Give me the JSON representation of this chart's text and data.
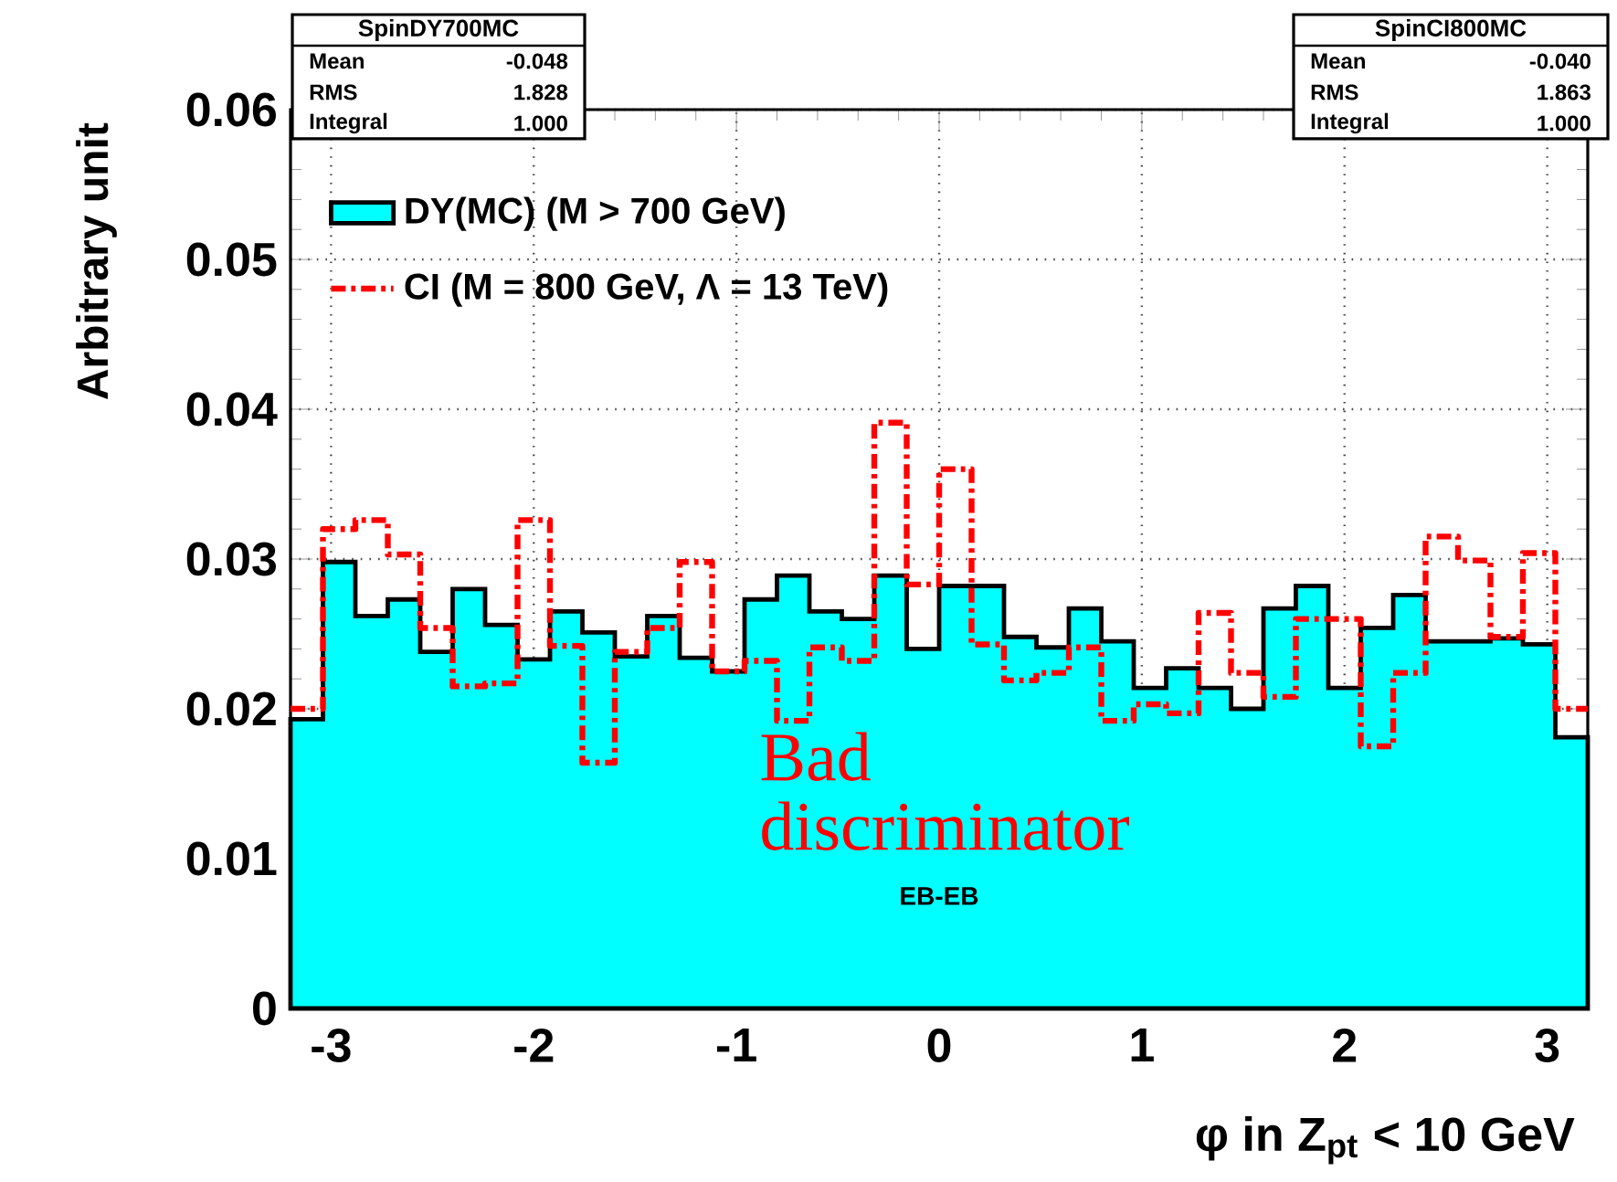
{
  "chart_data": {
    "type": "histogram",
    "xlabel": "φ in Z$_{pt}$ < 10 GeV",
    "ylabel": "Arbitrary unit",
    "bins": [
      -3.2,
      -3.04,
      -2.88,
      -2.72,
      -2.56,
      -2.4,
      -2.24,
      -2.08,
      -1.92,
      -1.76,
      -1.6,
      -1.44,
      -1.28,
      -1.12,
      -0.96,
      -0.8,
      -0.64,
      -0.48,
      -0.32,
      -0.16,
      0,
      0.16,
      0.32,
      0.48,
      0.64,
      0.8,
      0.96,
      1.12,
      1.28,
      1.44,
      1.6,
      1.76,
      1.92,
      2.08,
      2.24,
      2.4,
      2.56,
      2.72,
      2.88,
      3.04,
      3.2
    ],
    "series": [
      {
        "name": "DY(MC) (M > 700 GeV)",
        "color": "#00ffff",
        "values": [
          0.0193,
          0.0298,
          0.0262,
          0.0273,
          0.0238,
          0.028,
          0.0256,
          0.0233,
          0.0265,
          0.0251,
          0.0235,
          0.0262,
          0.0234,
          0.0225,
          0.0273,
          0.0289,
          0.0265,
          0.026,
          0.0289,
          0.024,
          0.0282,
          0.0282,
          0.0248,
          0.0241,
          0.0267,
          0.0245,
          0.0214,
          0.0227,
          0.0214,
          0.02,
          0.0267,
          0.0282,
          0.0214,
          0.0254,
          0.0276,
          0.0245,
          0.0245,
          0.0247,
          0.0243,
          0.0181
        ]
      },
      {
        "name": "CI (M = 800 GeV, Λ = 13 TeV)",
        "color": "#ff0000",
        "line_style": "dashed",
        "values": [
          0.02,
          0.032,
          0.0326,
          0.0303,
          0.0254,
          0.0215,
          0.0217,
          0.0326,
          0.0242,
          0.0164,
          0.0238,
          0.0254,
          0.0298,
          0.0225,
          0.0232,
          0.0192,
          0.0241,
          0.0232,
          0.0391,
          0.0283,
          0.036,
          0.0243,
          0.0219,
          0.0224,
          0.0241,
          0.0192,
          0.0203,
          0.0197,
          0.0264,
          0.0224,
          0.0208,
          0.026,
          0.026,
          0.0175,
          0.0224,
          0.0315,
          0.0299,
          0.0248,
          0.0304,
          0.02
        ]
      }
    ],
    "xlim": [
      -3.2,
      3.2
    ],
    "xticks": [
      -3,
      -2,
      -1,
      0,
      1,
      2,
      3
    ],
    "ylim": [
      0,
      0.06
    ],
    "yticks": [
      0,
      0.01,
      0.02,
      0.03,
      0.04,
      0.05,
      0.06
    ],
    "grid": true,
    "legend": "top left",
    "annotations": [
      "SpinDY700MC",
      "Mean",
      "-0.048",
      "RMS",
      "1.828",
      "Integral",
      "1.000",
      "SpinCI800MC",
      "Mean",
      "-0.040",
      "RMS",
      "1.863",
      "Integral",
      "1.000",
      "Bad discriminator",
      "EB-EB"
    ]
  }
}
